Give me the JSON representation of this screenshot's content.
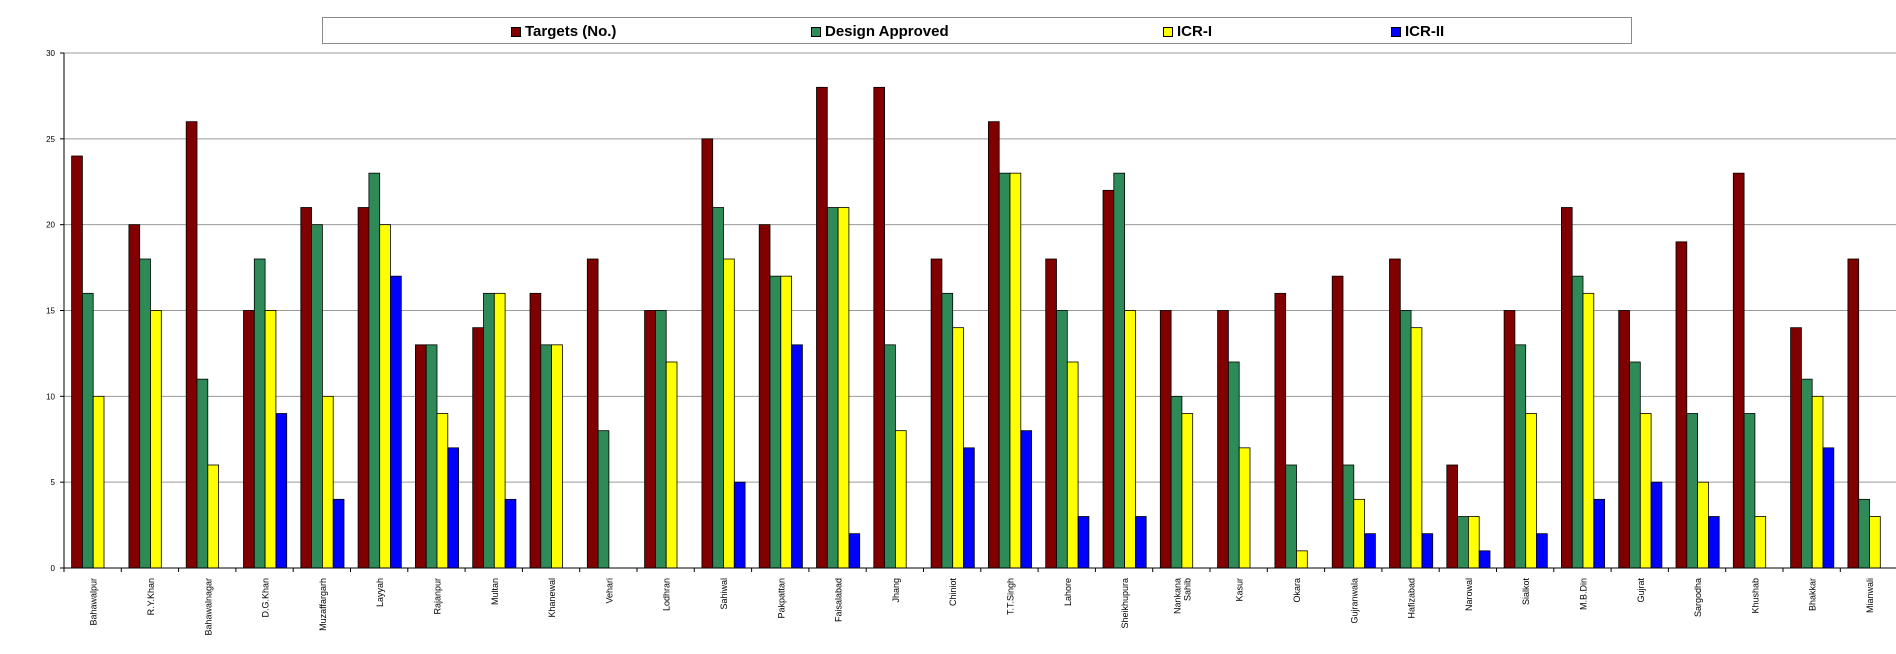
{
  "chart_data": {
    "type": "bar",
    "title": "",
    "xlabel": "",
    "ylabel": "",
    "ylim": [
      0,
      30
    ],
    "yticks": [
      0,
      5,
      10,
      15,
      20,
      25,
      30
    ],
    "grid": true,
    "legend_position": "top",
    "categories": [
      "Bahawalpur",
      "R.Y.Khan",
      "Bahawalnagar",
      "D.G.Khan",
      "Muzaffargarh",
      "Layyah",
      "Rajanpur",
      "Multan",
      "Khanewal",
      "Vehari",
      "Lodhran",
      "Sahiwal",
      "Pakpattan",
      "Faisalabad",
      "Jhang",
      "Chiniot",
      "T.T.Singh",
      "Lahore",
      "Sheikhupura",
      "Nankana Sahib",
      "Kasur",
      "Okara",
      "Gujranwala",
      "Hafizabad",
      "Narowal",
      "Sialkot",
      "M.B.Din",
      "Gujrat",
      "Sargodha",
      "Khushab",
      "Bhakkar",
      "Mianwali"
    ],
    "series": [
      {
        "name": "Targets (No.)",
        "color": "#800000",
        "values": [
          24,
          20,
          26,
          15,
          21,
          21,
          13,
          14,
          16,
          18,
          15,
          25,
          20,
          28,
          28,
          18,
          26,
          18,
          22,
          15,
          15,
          16,
          17,
          18,
          6,
          15,
          21,
          15,
          19,
          23,
          14,
          18
        ]
      },
      {
        "name": "Design Approved",
        "color": "#2e8b57",
        "values": [
          16,
          18,
          11,
          18,
          20,
          23,
          13,
          16,
          13,
          8,
          15,
          21,
          17,
          21,
          13,
          16,
          23,
          15,
          23,
          10,
          12,
          6,
          6,
          15,
          3,
          13,
          17,
          12,
          9,
          9,
          11,
          4
        ]
      },
      {
        "name": "ICR-I",
        "color": "#ffff00",
        "values": [
          10,
          15,
          6,
          15,
          10,
          20,
          9,
          16,
          13,
          0,
          12,
          18,
          17,
          21,
          8,
          14,
          23,
          12,
          15,
          9,
          7,
          1,
          4,
          14,
          3,
          9,
          16,
          9,
          5,
          3,
          10,
          3
        ]
      },
      {
        "name": "ICR-II",
        "color": "#0000ff",
        "values": [
          0,
          0,
          0,
          9,
          4,
          17,
          7,
          4,
          0,
          0,
          0,
          5,
          13,
          2,
          0,
          7,
          8,
          3,
          3,
          0,
          0,
          0,
          2,
          2,
          1,
          2,
          4,
          5,
          3,
          0,
          7,
          0
        ]
      }
    ]
  }
}
